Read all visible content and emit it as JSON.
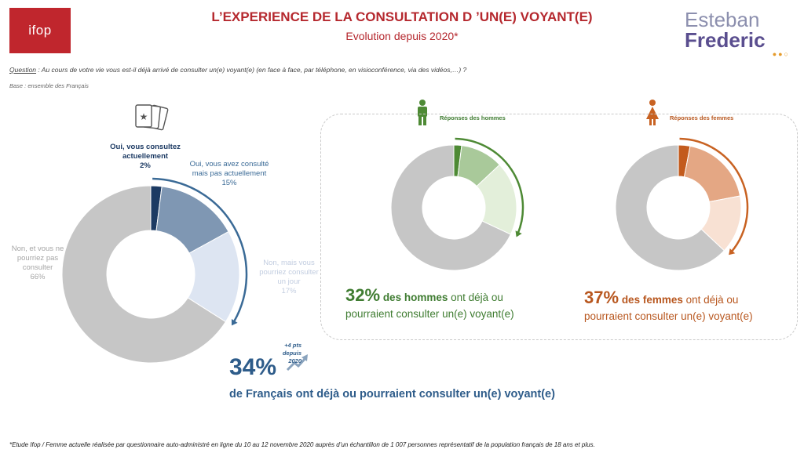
{
  "header": {
    "logo_text": "ifop",
    "title": "L’EXPERIENCE DE LA CONSULTATION D ’UN(E) VOYANT(E)",
    "subtitle": "Evolution depuis 2020*",
    "brand_line1": "Esteban",
    "brand_line2": "Frederic"
  },
  "question_label": "Question",
  "question_text": " : Au cours de votre vie vous est-il déjà arrivé de consulter un(e) voyant(e) (en face à face, par téléphone, en visioconférence, via des vidéos,…) ?",
  "base": "Base : ensemble des Français",
  "labels": {
    "s1": "Oui, vous consultez actuellement",
    "s1_pct": "2%",
    "s2": "Oui, vous avez consulté mais pas actuellement",
    "s2_pct": "15%",
    "s3": "Non, mais vous pourriez consulter un jour",
    "s3_pct": "17%",
    "s4": "Non, et vous ne pourriez pas consulter",
    "s4_pct": "66%"
  },
  "main_summary": {
    "big": "34%",
    "text": "de Français ont déjà ou pourraient consulter un(e) voyant(e)",
    "evolution_line1": "+4 pts depuis",
    "evolution_line2": "2020"
  },
  "men": {
    "label": "Réponses des hommes",
    "big": "32%",
    "bold": "des hommes",
    "rest1": " ont déjà ou",
    "rest2": "pourraient consulter un(e) voyant(e)"
  },
  "women": {
    "label": "Réponses des femmes",
    "big": "37%",
    "bold": "des femmes",
    "rest1": " ont déjà ou",
    "rest2": "pourraient consulter un(e) voyant(e)"
  },
  "footnote": "*Etude Ifop / Femme actuelle réalisée par questionnaire auto-administré en ligne du 10 au 12 novembre 2020 auprès d’un échantillon de 1 007 personnes représentatif de la population français de 18 ans et plus.",
  "colors": {
    "main": [
      "#1c3a63",
      "#7f97b3",
      "#dde5f2",
      "#c6c6c6"
    ],
    "men": [
      "#4e8a35",
      "#a9c99a",
      "#e3efda",
      "#c6c6c6"
    ],
    "women": [
      "#c35b1d",
      "#e4a784",
      "#f8e1d3",
      "#c6c6c6"
    ],
    "men_arc": "#4e8a35",
    "women_arc": "#c86222",
    "main_arc": "#3a6a96"
  },
  "chart_data": [
    {
      "type": "pie",
      "variant": "donut",
      "categories": [
        "Oui, vous consultez actuellement",
        "Oui, vous avez consulté mais pas actuellement",
        "Non, mais vous pourriez consulter un jour",
        "Non, et vous ne pourriez pas consulter"
      ],
      "values": [
        2,
        15,
        17,
        66
      ]
    },
    {
      "type": "pie",
      "variant": "donut",
      "title": "Réponses des hommes",
      "values": [
        2,
        11,
        19,
        68
      ]
    },
    {
      "type": "pie",
      "variant": "donut",
      "title": "Réponses des femmes",
      "values": [
        3,
        19,
        15,
        63
      ]
    }
  ]
}
